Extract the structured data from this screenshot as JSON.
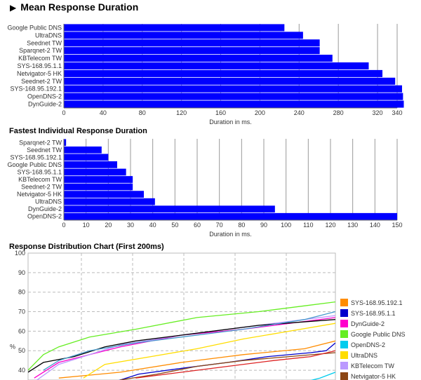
{
  "page": {
    "section1_title": "Mean Response Duration",
    "section2_title": "Fastest Individual Response Duration",
    "section3_title": "Response Distribution Chart (First 200ms)"
  },
  "chart_data": [
    {
      "type": "bar",
      "orientation": "horizontal",
      "title": "Mean Response Duration",
      "xlabel": "Duration in ms.",
      "xlim": [
        0,
        340
      ],
      "xticks": [
        0,
        40,
        80,
        120,
        160,
        200,
        240,
        280,
        320,
        340
      ],
      "grid": true,
      "bar_color": "#0000ff",
      "categories": [
        "Google Public DNS",
        "UltraDNS",
        "Seednet TW",
        "Sparqnet-2 TW",
        "KBTelecom TW",
        "SYS-168.95.1.1",
        "Netvigator-5 HK",
        "Seednet-2 TW",
        "SYS-168.95.192.1",
        "OpenDNS-2",
        "DynGuide-2"
      ],
      "values": [
        225,
        244,
        261,
        261,
        274,
        311,
        325,
        338,
        345,
        346,
        347
      ]
    },
    {
      "type": "bar",
      "orientation": "horizontal",
      "title": "Fastest Individual Response Duration",
      "xlabel": "Duration in ms.",
      "xlim": [
        0,
        150
      ],
      "xticks": [
        0,
        10,
        20,
        30,
        40,
        50,
        60,
        70,
        80,
        90,
        100,
        110,
        120,
        130,
        140,
        150
      ],
      "grid": true,
      "bar_color": "#0000ff",
      "categories": [
        "Sparqnet-2 TW",
        "Seednet TW",
        "SYS-168.95.192.1",
        "Google Public DNS",
        "SYS-168.95.1.1",
        "KBTelecom TW",
        "Seednet-2 TW",
        "Netvigator-5 HK",
        "UltraDNS",
        "DynGuide-2",
        "OpenDNS-2"
      ],
      "values": [
        1,
        17,
        20,
        24,
        28,
        31,
        31,
        36,
        41,
        95,
        150
      ]
    },
    {
      "type": "line",
      "title": "Response Distribution Chart (First 200ms)",
      "ylabel": "%",
      "ylim": [
        35,
        100
      ],
      "yticks": [
        40,
        50,
        60,
        70,
        80,
        90,
        100
      ],
      "grid": true,
      "legend": "right",
      "series": [
        {
          "name": "SYS-168.95.192.1",
          "color": "#ff8c00",
          "points": [
            [
              0.1,
              36
            ],
            [
              0.3,
              39
            ],
            [
              0.5,
              44
            ],
            [
              0.7,
              48
            ],
            [
              0.9,
              51
            ],
            [
              1.0,
              55
            ]
          ]
        },
        {
          "name": "SYS-168.95.1.1",
          "color": "#0000cc",
          "points": [
            [
              0.28,
              34
            ],
            [
              0.36,
              38
            ],
            [
              0.5,
              41
            ],
            [
              0.65,
              44
            ],
            [
              0.78,
              47
            ],
            [
              0.92,
              49
            ],
            [
              0.97,
              50
            ],
            [
              1.0,
              54
            ]
          ]
        },
        {
          "name": "DynGuide-2",
          "color": "#ff00cc",
          "points": [
            [
              0.02,
              36
            ],
            [
              0.1,
              44
            ],
            [
              0.3,
              52
            ],
            [
              0.5,
              58
            ],
            [
              0.7,
              61
            ],
            [
              0.9,
              65
            ],
            [
              1.0,
              67
            ]
          ]
        },
        {
          "name": "Google Public DNS",
          "color": "#66ee22",
          "points": [
            [
              0.0,
              40
            ],
            [
              0.05,
              48
            ],
            [
              0.1,
              52
            ],
            [
              0.2,
              57
            ],
            [
              0.35,
              61
            ],
            [
              0.55,
              67
            ],
            [
              0.75,
              70
            ],
            [
              0.9,
              73
            ],
            [
              1.0,
              75
            ]
          ]
        },
        {
          "name": "OpenDNS-2",
          "color": "#00ccee",
          "points": [
            [
              0.9,
              34
            ],
            [
              0.95,
              36
            ],
            [
              1.0,
              39
            ]
          ]
        },
        {
          "name": "UltraDNS",
          "color": "#ffdd00",
          "points": [
            [
              0.18,
              36
            ],
            [
              0.25,
              43
            ],
            [
              0.4,
              47
            ],
            [
              0.55,
              51
            ],
            [
              0.7,
              56
            ],
            [
              0.85,
              60
            ],
            [
              1.0,
              64
            ]
          ]
        },
        {
          "name": "KBTelecom TW",
          "color": "#bb99ff",
          "points": [
            [
              0.02,
              34
            ],
            [
              0.1,
              43
            ],
            [
              0.3,
              53
            ],
            [
              0.5,
              58
            ],
            [
              0.7,
              62
            ],
            [
              0.9,
              66
            ],
            [
              1.0,
              68
            ]
          ]
        },
        {
          "name": "Netvigator-5 HK",
          "color": "#8b4513",
          "points": [
            [
              0.3,
              35
            ],
            [
              0.42,
              38
            ],
            [
              0.55,
              42
            ],
            [
              0.7,
              45
            ],
            [
              0.85,
              47
            ],
            [
              1.0,
              49
            ]
          ]
        },
        {
          "name": "",
          "color": "#000000",
          "points": [
            [
              0.0,
              39
            ],
            [
              0.05,
              44
            ],
            [
              0.15,
              47
            ],
            [
              0.25,
              52
            ],
            [
              0.35,
              55
            ],
            [
              0.55,
              59
            ],
            [
              0.75,
              63
            ],
            [
              1.0,
              66
            ]
          ]
        },
        {
          "name": "",
          "color": "#4499cc",
          "points": [
            [
              0.05,
              40
            ],
            [
              0.1,
              45
            ],
            [
              0.2,
              50
            ],
            [
              0.35,
              54
            ],
            [
              0.5,
              57
            ],
            [
              0.7,
              61
            ],
            [
              0.9,
              66
            ],
            [
              1.0,
              70
            ]
          ]
        },
        {
          "name": "",
          "color": "#dd2222",
          "points": [
            [
              0.35,
              36
            ],
            [
              0.5,
              39
            ],
            [
              0.65,
              42
            ],
            [
              0.8,
              45
            ],
            [
              0.92,
              47
            ],
            [
              1.0,
              50
            ]
          ]
        }
      ]
    }
  ]
}
